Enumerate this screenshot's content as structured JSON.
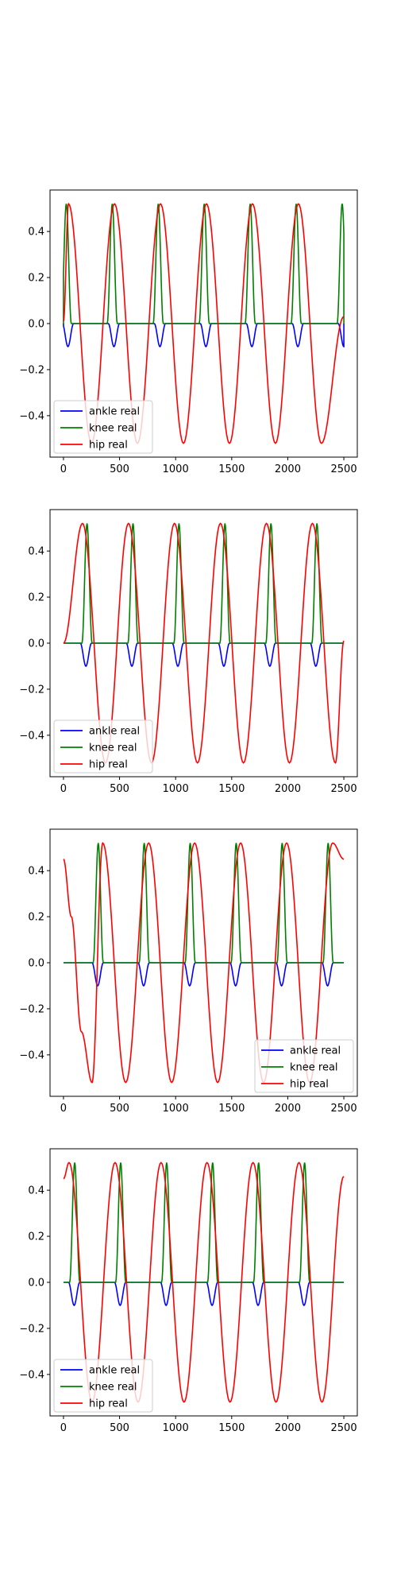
{
  "chart_data": [
    {
      "type": "line",
      "legend": {
        "location": "lower-left",
        "entries": [
          "ankle real",
          "knee real",
          "hip real"
        ]
      },
      "xlim": [
        -120,
        2620
      ],
      "ylim": [
        -0.58,
        0.58
      ],
      "xticks": [
        0,
        500,
        1000,
        1500,
        2000,
        2500
      ],
      "xtick_labels": [
        "0",
        "500",
        "1000",
        "1500",
        "2000",
        "2500"
      ],
      "yticks": [
        0.4,
        0.2,
        0.0,
        -0.2,
        -0.4
      ],
      "ytick_labels": [
        "0.4",
        "0.2",
        "0.0",
        "−0.2",
        "−0.4"
      ],
      "grid": false,
      "period": 410,
      "cycle_starts": [
        -10,
        400,
        810,
        1220,
        1630,
        2040,
        2450
      ],
      "series": [
        {
          "name": "ankle real",
          "color": "#0000ff",
          "amplitude": -0.1,
          "cycle_offset": 0,
          "width": 100,
          "points_per_cycle": [
            [
              0,
              0.0
            ],
            [
              25,
              -0.07
            ],
            [
              50,
              -0.1
            ],
            [
              75,
              -0.07
            ],
            [
              100,
              0.0
            ]
          ]
        },
        {
          "name": "knee real",
          "color": "#008000",
          "amplitude": 0.52,
          "cycle_offset": -10,
          "width": 90,
          "points_per_cycle": [
            [
              0,
              0.0
            ],
            [
              45,
              0.52
            ],
            [
              90,
              0.0
            ]
          ]
        },
        {
          "name": "hip real",
          "color": "#ff0000",
          "amplitude": 0.52,
          "cycle_offset": 45,
          "points": [
            [
              0,
              0.01
            ],
            [
              45,
              0.52
            ],
            [
              250,
              -0.52
            ],
            [
              455,
              0.52
            ],
            [
              660,
              -0.52
            ],
            [
              865,
              0.52
            ],
            [
              1070,
              -0.52
            ],
            [
              1275,
              0.52
            ],
            [
              1480,
              -0.52
            ],
            [
              1685,
              0.52
            ],
            [
              1890,
              -0.52
            ],
            [
              2095,
              0.52
            ],
            [
              2300,
              -0.52
            ],
            [
              2500,
              0.03
            ]
          ]
        }
      ]
    },
    {
      "type": "line",
      "legend": {
        "location": "lower-left",
        "entries": [
          "ankle real",
          "knee real",
          "hip real"
        ]
      },
      "xlim": [
        -120,
        2620
      ],
      "ylim": [
        -0.58,
        0.58
      ],
      "xticks": [
        0,
        500,
        1000,
        1500,
        2000,
        2500
      ],
      "xtick_labels": [
        "0",
        "500",
        "1000",
        "1500",
        "2000",
        "2500"
      ],
      "yticks": [
        0.4,
        0.2,
        0.0,
        -0.2,
        -0.4
      ],
      "ytick_labels": [
        "0.4",
        "0.2",
        "0.0",
        "−0.2",
        "−0.4"
      ],
      "grid": false,
      "series": [
        {
          "name": "ankle real",
          "color": "#0000ff",
          "centers": [
            200,
            610,
            1020,
            1430,
            1840,
            2250
          ],
          "amplitude": -0.1,
          "width": 100
        },
        {
          "name": "knee real",
          "color": "#008000",
          "centers": [
            210,
            620,
            1030,
            1440,
            1850,
            2260
          ],
          "amplitude": 0.52,
          "width": 90
        },
        {
          "name": "hip real",
          "color": "#ff0000",
          "points": [
            [
              0,
              0.0
            ],
            [
              170,
              0.52
            ],
            [
              375,
              -0.52
            ],
            [
              580,
              0.52
            ],
            [
              785,
              -0.52
            ],
            [
              990,
              0.52
            ],
            [
              1195,
              -0.52
            ],
            [
              1400,
              0.52
            ],
            [
              1605,
              -0.52
            ],
            [
              1810,
              0.52
            ],
            [
              2015,
              -0.52
            ],
            [
              2220,
              0.52
            ],
            [
              2425,
              -0.52
            ],
            [
              2500,
              0.01
            ]
          ]
        }
      ]
    },
    {
      "type": "line",
      "legend": {
        "location": "lower-right",
        "entries": [
          "ankle real",
          "knee real",
          "hip real"
        ]
      },
      "xlim": [
        -120,
        2620
      ],
      "ylim": [
        -0.58,
        0.58
      ],
      "xticks": [
        0,
        500,
        1000,
        1500,
        2000,
        2500
      ],
      "xtick_labels": [
        "0",
        "500",
        "1000",
        "1500",
        "2000",
        "2500"
      ],
      "yticks": [
        0.4,
        0.2,
        0.0,
        -0.2,
        -0.4
      ],
      "ytick_labels": [
        "0.4",
        "0.2",
        "0.0",
        "−0.2",
        "−0.4"
      ],
      "grid": false,
      "series": [
        {
          "name": "ankle real",
          "color": "#0000ff",
          "centers": [
            305,
            715,
            1125,
            1535,
            1945,
            2355
          ],
          "amplitude": -0.1,
          "width": 100
        },
        {
          "name": "knee real",
          "color": "#008000",
          "centers": [
            310,
            720,
            1130,
            1540,
            1950,
            2360
          ],
          "amplitude": 0.52,
          "width": 90
        },
        {
          "name": "hip real",
          "color": "#ff0000",
          "points": [
            [
              0,
              0.45
            ],
            [
              70,
              0.2
            ],
            [
              160,
              -0.3
            ],
            [
              255,
              -0.52
            ],
            [
              350,
              0.52
            ],
            [
              555,
              -0.52
            ],
            [
              760,
              0.52
            ],
            [
              965,
              -0.52
            ],
            [
              1170,
              0.52
            ],
            [
              1375,
              -0.52
            ],
            [
              1580,
              0.52
            ],
            [
              1785,
              -0.52
            ],
            [
              1990,
              0.52
            ],
            [
              2195,
              -0.52
            ],
            [
              2400,
              0.52
            ],
            [
              2500,
              0.45
            ]
          ]
        }
      ]
    },
    {
      "type": "line",
      "legend": {
        "location": "lower-left",
        "entries": [
          "ankle real",
          "knee real",
          "hip real"
        ]
      },
      "xlim": [
        -120,
        2620
      ],
      "ylim": [
        -0.58,
        0.58
      ],
      "xticks": [
        0,
        500,
        1000,
        1500,
        2000,
        2500
      ],
      "xtick_labels": [
        "0",
        "500",
        "1000",
        "1500",
        "2000",
        "2500"
      ],
      "yticks": [
        0.4,
        0.2,
        0.0,
        -0.2,
        -0.4
      ],
      "ytick_labels": [
        "0.4",
        "0.2",
        "0.0",
        "−0.2",
        "−0.4"
      ],
      "grid": false,
      "series": [
        {
          "name": "ankle real",
          "color": "#0000ff",
          "centers": [
            95,
            505,
            915,
            1325,
            1735,
            2145
          ],
          "amplitude": -0.1,
          "width": 100
        },
        {
          "name": "knee real",
          "color": "#008000",
          "centers": [
            100,
            510,
            920,
            1330,
            1740,
            2150
          ],
          "amplitude": 0.52,
          "width": 90
        },
        {
          "name": "hip real",
          "color": "#ff0000",
          "points": [
            [
              0,
              0.45
            ],
            [
              50,
              0.52
            ],
            [
              255,
              -0.52
            ],
            [
              460,
              0.52
            ],
            [
              665,
              -0.52
            ],
            [
              870,
              0.52
            ],
            [
              1075,
              -0.52
            ],
            [
              1280,
              0.52
            ],
            [
              1485,
              -0.52
            ],
            [
              1690,
              0.52
            ],
            [
              1895,
              -0.52
            ],
            [
              2100,
              0.52
            ],
            [
              2305,
              -0.52
            ],
            [
              2500,
              0.46
            ]
          ]
        }
      ]
    }
  ]
}
